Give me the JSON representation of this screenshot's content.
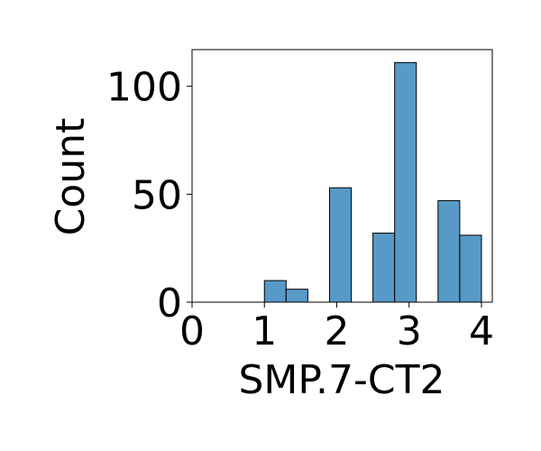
{
  "chart_data": {
    "type": "bar",
    "subtype": "histogram",
    "title": "",
    "xlabel": "SMP.7-CT2",
    "ylabel": "Count",
    "xlim": [
      0,
      4.15
    ],
    "ylim": [
      0,
      117
    ],
    "xticks": [
      0,
      1,
      2,
      3,
      4
    ],
    "yticks": [
      0,
      50,
      100
    ],
    "bar_color": "#5799C7",
    "edge_color": "#000000",
    "grid": false,
    "legend": "none",
    "bins": [
      {
        "x0": 1.0,
        "x1": 1.3,
        "count": 10
      },
      {
        "x0": 1.3,
        "x1": 1.6,
        "count": 6
      },
      {
        "x0": 1.6,
        "x1": 1.9,
        "count": 0
      },
      {
        "x0": 1.9,
        "x1": 2.2,
        "count": 53
      },
      {
        "x0": 2.2,
        "x1": 2.5,
        "count": 0
      },
      {
        "x0": 2.5,
        "x1": 2.8,
        "count": 32
      },
      {
        "x0": 2.8,
        "x1": 3.1,
        "count": 111
      },
      {
        "x0": 3.1,
        "x1": 3.4,
        "count": 0
      },
      {
        "x0": 3.4,
        "x1": 3.7,
        "count": 47
      },
      {
        "x0": 3.7,
        "x1": 4.0,
        "count": 31
      }
    ]
  }
}
